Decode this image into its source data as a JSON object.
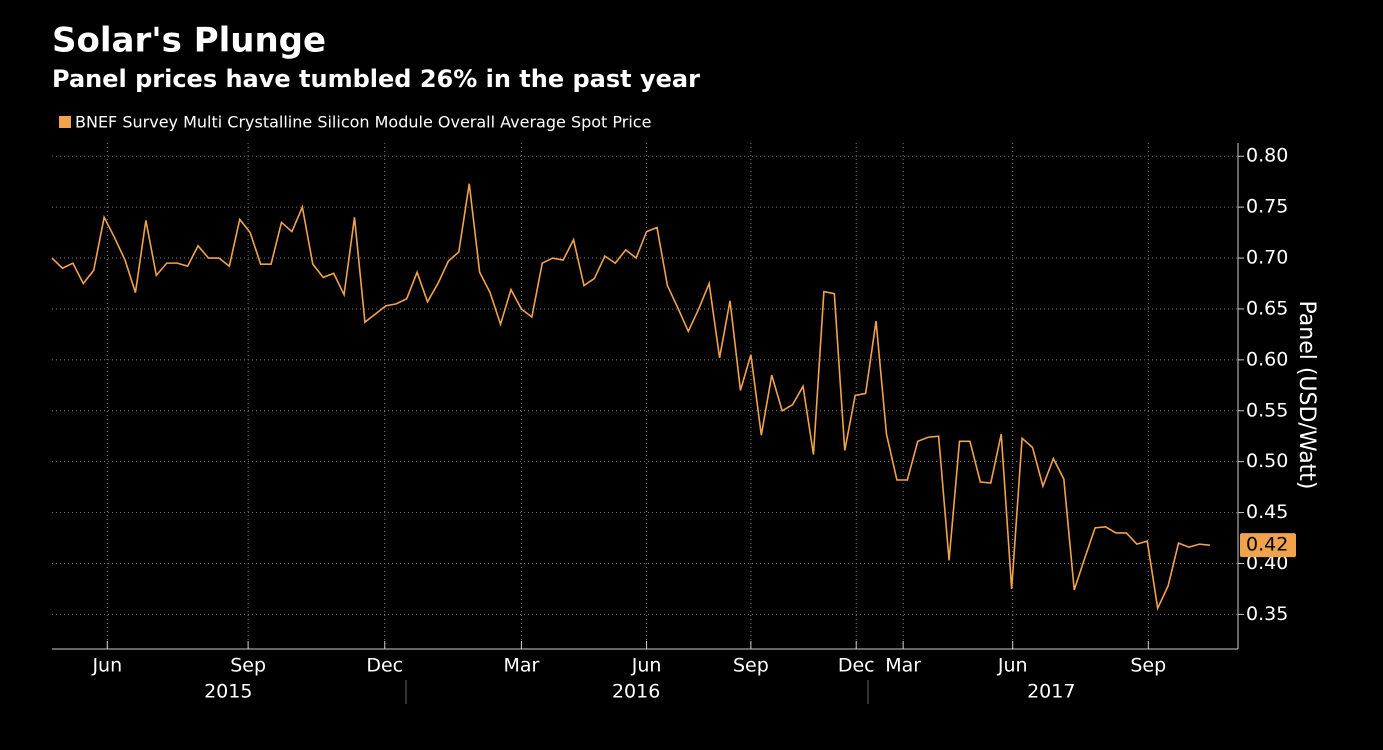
{
  "chart_data": {
    "type": "line",
    "title": "Solar's Plunge",
    "subtitle": "Panel prices have tumbled 26% in the past year",
    "y_label": "Panel (USD/Watt)",
    "grid": true,
    "x": [
      0,
      1,
      2,
      3,
      4,
      5,
      6,
      7,
      8,
      9,
      10,
      11,
      12,
      13,
      14,
      15,
      16,
      17,
      18,
      19,
      20,
      21,
      22,
      23,
      24,
      25,
      26,
      27,
      28,
      29,
      30,
      31,
      32,
      33,
      34,
      35,
      36,
      37,
      38,
      39,
      40,
      41,
      42,
      43,
      44,
      45,
      46,
      47,
      48,
      49,
      50,
      51,
      52,
      53,
      54,
      55,
      56,
      57,
      58,
      59,
      60,
      61,
      62,
      63,
      64,
      65,
      66,
      67,
      68,
      69,
      70,
      71,
      72,
      73,
      74,
      75,
      76,
      77,
      78,
      79,
      80,
      81,
      82,
      83,
      84,
      85,
      86,
      87,
      88,
      89,
      90,
      91,
      92,
      93,
      94,
      95,
      96,
      97,
      98,
      99,
      100,
      101,
      102,
      103,
      104,
      105,
      106,
      107,
      108,
      109,
      110,
      111
    ],
    "series": [
      {
        "name": "BNEF Survey Multi Crystalline Silicon Module Overall Average Spot Price",
        "color": "#f0a24c",
        "last_value_label": "0.42",
        "values": [
          0.7,
          0.69,
          0.695,
          0.675,
          0.688,
          0.74,
          0.72,
          0.698,
          0.666,
          0.737,
          0.683,
          0.695,
          0.695,
          0.692,
          0.712,
          0.7,
          0.7,
          0.692,
          0.738,
          0.725,
          0.694,
          0.694,
          0.735,
          0.726,
          0.75,
          0.694,
          0.681,
          0.685,
          0.664,
          0.74,
          0.637,
          0.645,
          0.653,
          0.655,
          0.66,
          0.686,
          0.657,
          0.675,
          0.697,
          0.706,
          0.773,
          0.686,
          0.666,
          0.635,
          0.669,
          0.65,
          0.642,
          0.695,
          0.7,
          0.698,
          0.718,
          0.673,
          0.68,
          0.702,
          0.695,
          0.708,
          0.7,
          0.726,
          0.73,
          0.673,
          0.651,
          0.628,
          0.65,
          0.675,
          0.602,
          0.658,
          0.57,
          0.605,
          0.526,
          0.585,
          0.55,
          0.556,
          0.574,
          0.507,
          0.667,
          0.665,
          0.511,
          0.565,
          0.567,
          0.638,
          0.527,
          0.482,
          0.482,
          0.52,
          0.524,
          0.525,
          0.403,
          0.52,
          0.52,
          0.48,
          0.479,
          0.527,
          0.375,
          0.523,
          0.514,
          0.476,
          0.503,
          0.483,
          0.374,
          0.405,
          0.435,
          0.436,
          0.43,
          0.43,
          0.419,
          0.422,
          0.356,
          0.378,
          0.42,
          0.416,
          0.419,
          0.418
        ]
      }
    ],
    "xlim": [
      0,
      113.7
    ],
    "xticks": [
      {
        "value": 5.3,
        "label": "Jun"
      },
      {
        "value": 18.8,
        "label": "Sep"
      },
      {
        "value": 31.9,
        "label": "Dec"
      },
      {
        "value": 45.0,
        "label": "Mar"
      },
      {
        "value": 57.0,
        "label": "Jun"
      },
      {
        "value": 67.0,
        "label": "Sep"
      },
      {
        "value": 77.1,
        "label": "Dec"
      },
      {
        "value": 81.6,
        "label": "Mar"
      },
      {
        "value": 92.1,
        "label": "Jun"
      },
      {
        "value": 105.1,
        "label": "Sep"
      }
    ],
    "year_ticks": [
      {
        "value": 16.9,
        "label": "2015"
      },
      {
        "value": 56.0,
        "label": "2016"
      },
      {
        "value": 95.8,
        "label": "2017"
      }
    ],
    "ylim": [
      0.316,
      0.813
    ],
    "yticks": [
      {
        "value": 0.8,
        "label": "0.80"
      },
      0.75,
      {
        "value": 0.7,
        "label": "0.70"
      },
      0.65,
      {
        "value": 0.6,
        "label": "0.60"
      },
      0.55,
      {
        "value": 0.5,
        "label": "0.50"
      },
      0.45,
      {
        "value": 0.4,
        "label": "0.40"
      },
      0.35
    ]
  }
}
